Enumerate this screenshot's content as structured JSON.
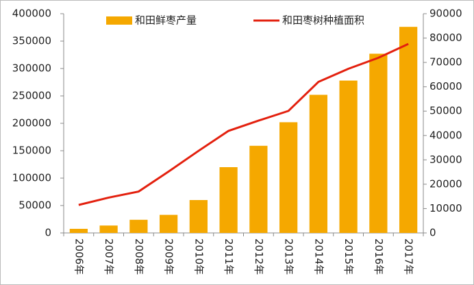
{
  "chart_data": {
    "type": "bar-line",
    "categories": [
      "2006年",
      "2007年",
      "2008年",
      "2009年",
      "2010年",
      "2011年",
      "2012年",
      "2013年",
      "2014年",
      "2015年",
      "2016年",
      "2017年"
    ],
    "series": [
      {
        "name": "和田鲜枣产量",
        "type": "bar",
        "color": "#f5a800",
        "values": [
          7500,
          13500,
          24000,
          33000,
          60000,
          120000,
          159000,
          202000,
          252000,
          278000,
          327000,
          376000
        ]
      },
      {
        "name": "和田枣树种植面积",
        "type": "line",
        "axis": "y2",
        "color": "#e3200e",
        "values": [
          11500,
          14500,
          17000,
          25200,
          33700,
          41900,
          46100,
          50100,
          62000,
          67400,
          71900,
          77600
        ]
      }
    ],
    "ylim": [
      0,
      400000
    ],
    "yticks": [
      0,
      50000,
      100000,
      150000,
      200000,
      250000,
      300000,
      350000,
      400000
    ],
    "y2lim": [
      0,
      90000
    ],
    "y2ticks": [
      0,
      10000,
      20000,
      30000,
      40000,
      50000,
      60000,
      70000,
      80000,
      90000
    ],
    "legend": "top"
  }
}
